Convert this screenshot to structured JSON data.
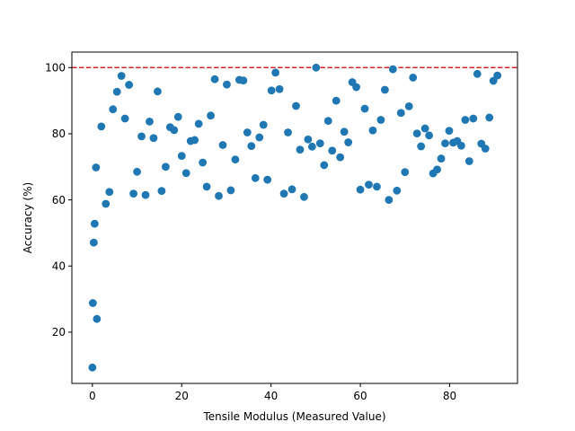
{
  "chart_data": {
    "type": "scatter",
    "title": "",
    "xlabel": "Tensile Modulus (Measured Value)",
    "ylabel": "Accuracy (%)",
    "xlim": [
      -4.6,
      95.2
    ],
    "ylim": [
      4.5,
      104.7
    ],
    "xticks": [
      0,
      20,
      40,
      60,
      80
    ],
    "yticks": [
      20,
      40,
      60,
      80,
      100
    ],
    "grid": false,
    "legend": "none",
    "marker_color": "#1f77b4",
    "reference_line": {
      "y": 100,
      "color": "#d62728",
      "style": "dashed"
    },
    "series": [
      {
        "points": [
          [
            0.0,
            9.3
          ],
          [
            0.1,
            28.8
          ],
          [
            0.3,
            47.1
          ],
          [
            0.5,
            52.8
          ],
          [
            0.8,
            69.8
          ],
          [
            1.0,
            24.0
          ],
          [
            2.0,
            82.2
          ],
          [
            3.0,
            58.8
          ],
          [
            3.8,
            62.4
          ],
          [
            4.6,
            87.4
          ],
          [
            5.5,
            92.7
          ],
          [
            6.5,
            97.5
          ],
          [
            7.3,
            84.6
          ],
          [
            8.2,
            94.8
          ],
          [
            9.2,
            61.9
          ],
          [
            10.0,
            68.5
          ],
          [
            11.0,
            79.2
          ],
          [
            11.9,
            61.5
          ],
          [
            12.8,
            83.7
          ],
          [
            13.7,
            78.7
          ],
          [
            14.6,
            92.8
          ],
          [
            15.5,
            62.7
          ],
          [
            16.4,
            70.0
          ],
          [
            17.4,
            82.0
          ],
          [
            18.3,
            81.1
          ],
          [
            19.2,
            85.1
          ],
          [
            20.0,
            73.3
          ],
          [
            21.0,
            68.1
          ],
          [
            22.0,
            77.8
          ],
          [
            22.9,
            78.1
          ],
          [
            23.8,
            83.0
          ],
          [
            24.7,
            71.3
          ],
          [
            25.6,
            64.0
          ],
          [
            26.5,
            85.5
          ],
          [
            27.4,
            96.5
          ],
          [
            28.3,
            61.2
          ],
          [
            29.2,
            76.6
          ],
          [
            30.1,
            94.9
          ],
          [
            31.0,
            62.9
          ],
          [
            32.0,
            72.2
          ],
          [
            32.9,
            96.3
          ],
          [
            33.8,
            96.1
          ],
          [
            34.7,
            80.4
          ],
          [
            35.6,
            76.3
          ],
          [
            36.5,
            66.6
          ],
          [
            37.4,
            78.9
          ],
          [
            38.3,
            82.7
          ],
          [
            39.2,
            66.1
          ],
          [
            40.1,
            93.1
          ],
          [
            41.0,
            98.5
          ],
          [
            41.9,
            93.5
          ],
          [
            42.9,
            61.9
          ],
          [
            43.8,
            80.4
          ],
          [
            44.7,
            63.2
          ],
          [
            45.6,
            88.4
          ],
          [
            46.5,
            75.2
          ],
          [
            47.4,
            60.9
          ],
          [
            48.3,
            78.3
          ],
          [
            49.2,
            76.1
          ],
          [
            50.1,
            100.0
          ],
          [
            51.0,
            77.1
          ],
          [
            51.9,
            70.5
          ],
          [
            52.8,
            83.9
          ],
          [
            53.7,
            74.9
          ],
          [
            54.6,
            90.0
          ],
          [
            55.5,
            72.9
          ],
          [
            56.4,
            80.6
          ],
          [
            57.3,
            77.4
          ],
          [
            58.2,
            95.6
          ],
          [
            59.1,
            94.1
          ],
          [
            60.0,
            63.1
          ],
          [
            61.0,
            87.6
          ],
          [
            61.9,
            64.6
          ],
          [
            62.8,
            81.0
          ],
          [
            63.7,
            64.0
          ],
          [
            64.6,
            84.2
          ],
          [
            65.5,
            93.3
          ],
          [
            66.4,
            60.0
          ],
          [
            67.3,
            99.5
          ],
          [
            68.2,
            62.8
          ],
          [
            69.1,
            86.3
          ],
          [
            70.0,
            68.4
          ],
          [
            70.9,
            88.3
          ],
          [
            71.8,
            97.0
          ],
          [
            72.7,
            80.1
          ],
          [
            73.6,
            76.2
          ],
          [
            74.5,
            81.6
          ],
          [
            75.4,
            79.5
          ],
          [
            76.3,
            68.0
          ],
          [
            77.2,
            69.2
          ],
          [
            78.1,
            72.5
          ],
          [
            79.0,
            77.1
          ],
          [
            79.9,
            80.9
          ],
          [
            80.8,
            77.3
          ],
          [
            81.7,
            77.8
          ],
          [
            82.6,
            76.4
          ],
          [
            83.5,
            84.2
          ],
          [
            84.4,
            71.7
          ],
          [
            85.3,
            84.6
          ],
          [
            86.2,
            98.1
          ],
          [
            87.1,
            77.0
          ],
          [
            88.0,
            75.5
          ],
          [
            88.9,
            84.9
          ],
          [
            89.8,
            96.0
          ],
          [
            90.7,
            97.6
          ]
        ]
      }
    ]
  }
}
